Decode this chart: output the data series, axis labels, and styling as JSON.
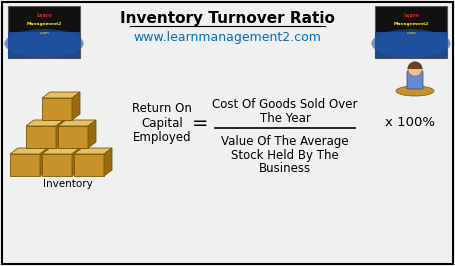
{
  "title": "Inventory Turnover Ratio",
  "subtitle": "www.learnmanagement2.com",
  "subtitle_color": "#0070C0",
  "title_color": "#000000",
  "title_fontsize": 11,
  "subtitle_fontsize": 9,
  "left_label_line1": "Return On",
  "left_label_line2": "Capital",
  "left_label_line3": "Employed",
  "numerator_line1": "Cost Of Goods Sold Over",
  "numerator_line2": "The Year",
  "denominator_line1": "Value Of The Average",
  "denominator_line2": "Stock Held By The",
  "denominator_line3": "Business",
  "multiplier": "x 100%",
  "equals": "=",
  "inventory_label": "Inventory",
  "bg_color": "#F0F0F0",
  "border_color": "#000000",
  "text_color": "#000000",
  "formula_fontsize": 8.5,
  "label_fontsize": 8.5,
  "box_color": "#C8922A",
  "box_edge": "#7A5800",
  "box_light": "#E8C06A",
  "box_dark": "#9A6A10"
}
